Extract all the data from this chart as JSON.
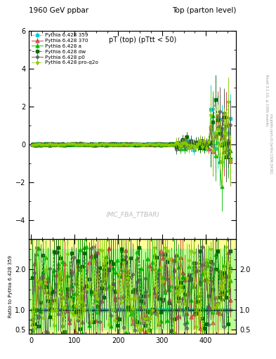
{
  "title_left": "1960 GeV ppbar",
  "title_right": "Top (parton level)",
  "main_title": "pT (top) (pTtt < 50)",
  "watermark": "(MC_FBA_TTBAR)",
  "right_label1": "mcplots.cern.ch [arXiv:1306.3436]",
  "right_label2": "Rivet 3.1.10, ≥ 100k events",
  "ylabel_ratio": "Ratio to Pythia 6.428 359",
  "main_ylim": [
    -5,
    6
  ],
  "main_yticks": [
    -4,
    -2,
    0,
    2,
    4,
    6
  ],
  "ratio_ylim": [
    0.4,
    2.75
  ],
  "ratio_yticks": [
    0.5,
    1,
    2
  ],
  "xlim": [
    -5,
    470
  ],
  "series": [
    {
      "label": "Pythia 6.428 359",
      "color": "#00CCCC",
      "linestyle": "--",
      "marker": "s",
      "markersize": 2.5,
      "linewidth": 0.7,
      "filled": true
    },
    {
      "label": "Pythia 6.428 370",
      "color": "#CC3333",
      "linestyle": "-",
      "marker": "^",
      "markersize": 3.5,
      "linewidth": 0.7,
      "filled": false
    },
    {
      "label": "Pythia 6.428 a",
      "color": "#00BB00",
      "linestyle": "-",
      "marker": "^",
      "markersize": 3.5,
      "linewidth": 0.7,
      "filled": true
    },
    {
      "label": "Pythia 6.428 dw",
      "color": "#006600",
      "linestyle": "--",
      "marker": "s",
      "markersize": 2.5,
      "linewidth": 0.7,
      "filled": true
    },
    {
      "label": "Pythia 6.428 p0",
      "color": "#555555",
      "linestyle": "-",
      "marker": "o",
      "markersize": 2.5,
      "linewidth": 0.7,
      "filled": false
    },
    {
      "label": "Pythia 6.428 pro-q2o",
      "color": "#88CC00",
      "linestyle": "--",
      "marker": "*",
      "markersize": 3.5,
      "linewidth": 0.7,
      "filled": true
    }
  ],
  "background_color": "#ffffff",
  "ratio_bg_green": "#bbff99",
  "ratio_bg_yellow": "#ffff99"
}
